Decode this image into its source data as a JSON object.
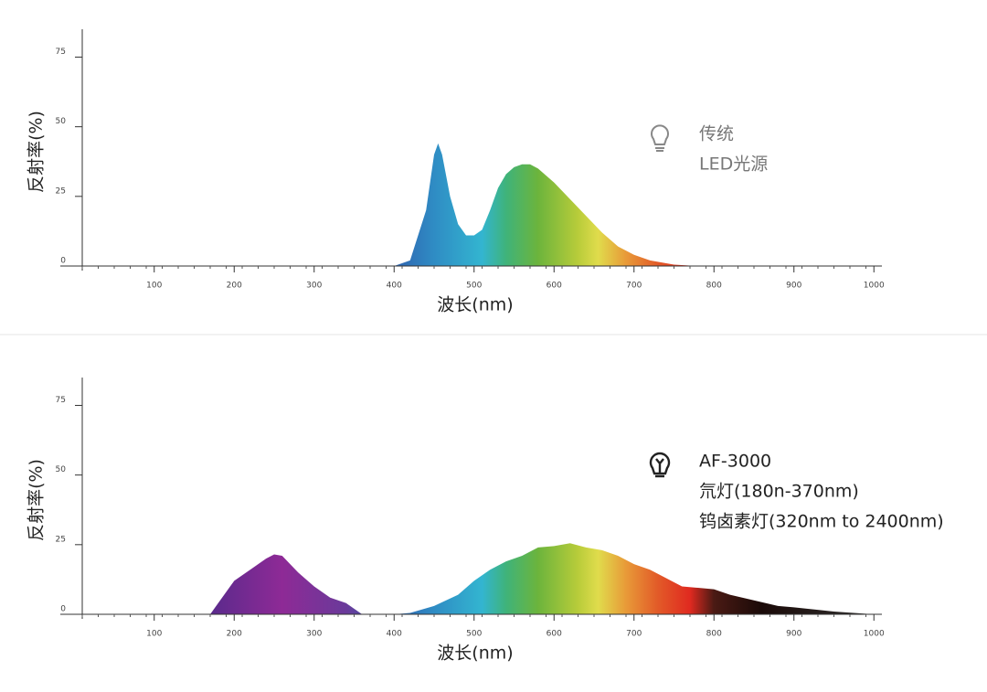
{
  "chart_data": [
    {
      "type": "area",
      "xlabel": "波长(nm)",
      "ylabel": "反射率(%)",
      "x": [
        400,
        420,
        440,
        450,
        455,
        460,
        470,
        480,
        490,
        500,
        510,
        520,
        530,
        540,
        550,
        560,
        570,
        580,
        600,
        620,
        640,
        660,
        680,
        700,
        720,
        750,
        780
      ],
      "values": [
        0,
        2,
        20,
        40,
        44,
        40,
        25,
        15,
        11,
        11,
        13,
        20,
        28,
        33,
        35.5,
        36.5,
        36.5,
        35,
        30,
        24,
        18,
        12,
        7,
        4,
        2,
        0.5,
        0
      ],
      "xlim": [
        10,
        1010
      ],
      "ylim": [
        0,
        85
      ],
      "xticks": [
        100,
        200,
        300,
        400,
        500,
        600,
        700,
        800,
        900,
        1000
      ],
      "yticks": [
        0,
        25,
        50,
        75
      ],
      "annotations": [
        "传统",
        "LED光源"
      ]
    },
    {
      "type": "area",
      "xlabel": "波长(nm)",
      "ylabel": "反射率(%)",
      "x": [
        170,
        180,
        200,
        220,
        240,
        250,
        260,
        280,
        300,
        320,
        340,
        360,
        400,
        420,
        450,
        480,
        500,
        520,
        540,
        560,
        580,
        600,
        620,
        640,
        660,
        680,
        700,
        720,
        740,
        760,
        780,
        800,
        820,
        850,
        880,
        900,
        950,
        1000
      ],
      "values": [
        0,
        4,
        12,
        16,
        20,
        21.5,
        21,
        15,
        10,
        6,
        4,
        0,
        0,
        0.5,
        3,
        7,
        12,
        16,
        19,
        21,
        24,
        24.5,
        25.5,
        24,
        23,
        21,
        18,
        16,
        13,
        10,
        9.5,
        9,
        7,
        5,
        3,
        2.5,
        1,
        0
      ],
      "xlim": [
        10,
        1010
      ],
      "ylim": [
        0,
        85
      ],
      "xticks": [
        100,
        200,
        300,
        400,
        500,
        600,
        700,
        800,
        900,
        1000
      ],
      "yticks": [
        0,
        25,
        50,
        75
      ],
      "annotations": [
        "AF-3000",
        "氘灯(180n-370nm)",
        "钨卤素灯(320nm to 2400nm)"
      ]
    }
  ]
}
